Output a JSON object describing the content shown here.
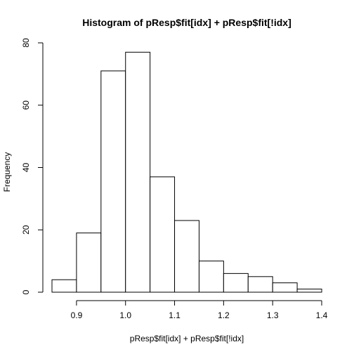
{
  "chart_data": {
    "type": "bar",
    "title": "Histogram of pResp$fit[idx] + pResp$fit[!idx]",
    "xlabel": "pResp$fit[idx] + pResp$fit[!idx]",
    "ylabel": "Frequency",
    "bins": [
      {
        "start": 0.85,
        "end": 0.9,
        "count": 4
      },
      {
        "start": 0.9,
        "end": 0.95,
        "count": 19
      },
      {
        "start": 0.95,
        "end": 1.0,
        "count": 71
      },
      {
        "start": 1.0,
        "end": 1.05,
        "count": 77
      },
      {
        "start": 1.05,
        "end": 1.1,
        "count": 37
      },
      {
        "start": 1.1,
        "end": 1.15,
        "count": 23
      },
      {
        "start": 1.15,
        "end": 1.2,
        "count": 10
      },
      {
        "start": 1.2,
        "end": 1.25,
        "count": 6
      },
      {
        "start": 1.25,
        "end": 1.3,
        "count": 5
      },
      {
        "start": 1.3,
        "end": 1.35,
        "count": 3
      },
      {
        "start": 1.35,
        "end": 1.4,
        "count": 1
      }
    ],
    "x_ticks": [
      0.9,
      1.0,
      1.1,
      1.2,
      1.3,
      1.4
    ],
    "x_tick_labels": [
      "0.9",
      "1.0",
      "1.1",
      "1.2",
      "1.3",
      "1.4"
    ],
    "y_ticks": [
      0,
      20,
      40,
      60,
      80
    ],
    "y_tick_labels": [
      "0",
      "20",
      "40",
      "60",
      "80"
    ],
    "xlim": [
      0.85,
      1.4
    ],
    "ylim": [
      0,
      80
    ],
    "grid": false,
    "colors": {
      "bar_fill": "#ffffff",
      "bar_stroke": "#000000",
      "background": "#ffffff"
    }
  }
}
